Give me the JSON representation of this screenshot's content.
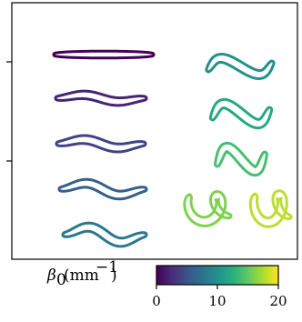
{
  "colorbar": {
    "label": "β₀(mm⁻¹)",
    "min": 0,
    "max": 20,
    "ticks": [
      {
        "value": 0,
        "label": "0"
      },
      {
        "value": 10,
        "label": "10"
      },
      {
        "value": 20,
        "label": "20"
      }
    ],
    "colormap": "viridis",
    "stops": [
      "#440154",
      "#472d7b",
      "#3b528b",
      "#2c728e",
      "#21918c",
      "#28ae80",
      "#5ec962",
      "#addc30",
      "#fde725"
    ]
  },
  "shapes": [
    {
      "beta0": 0,
      "column": "left"
    },
    {
      "beta0": 2,
      "column": "left"
    },
    {
      "beta0": 4,
      "column": "left"
    },
    {
      "beta0": 6,
      "column": "left"
    },
    {
      "beta0": 8,
      "column": "left"
    },
    {
      "beta0": 10,
      "column": "right"
    },
    {
      "beta0": 12,
      "column": "right"
    },
    {
      "beta0": 14,
      "column": "right"
    },
    {
      "beta0": 16,
      "column": "right"
    },
    {
      "beta0": 18,
      "column": "right"
    }
  ]
}
